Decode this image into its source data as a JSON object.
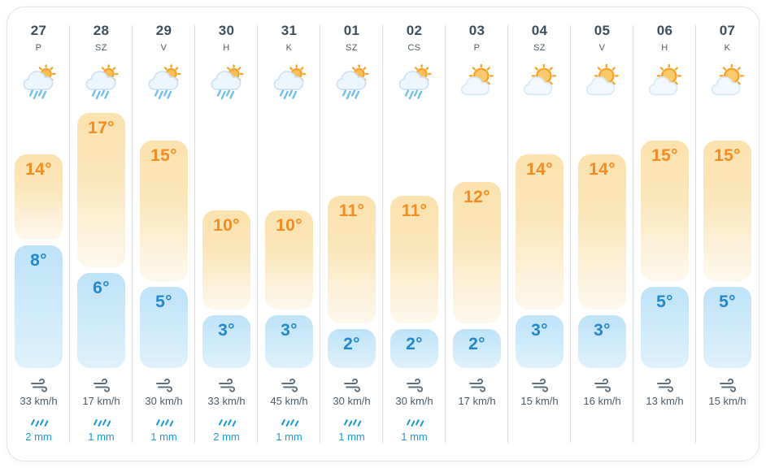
{
  "widget": "twelve-day-weather-forecast",
  "units": {
    "temperature": "°",
    "wind": "km/h",
    "precipitation": "mm"
  },
  "colors": {
    "high_bar": "#fbe2ae",
    "high_text": "#f68b1f",
    "low_bar": "#bfe2f7",
    "low_text": "#2287cb",
    "day_text": "#3d4e5c",
    "wind_text": "#4b5a67",
    "precip_accent": "#199ad6",
    "divider": "#d9dee2"
  },
  "days": [
    {
      "date": "27",
      "day": "P",
      "icon": "rain-sun",
      "high": 14,
      "high_label": "14°",
      "low": 8,
      "low_label": "8°",
      "wind_kmh": 33,
      "wind_label": "33 km/h",
      "precip_mm": 2,
      "precip_label": "2 mm"
    },
    {
      "date": "28",
      "day": "SZ",
      "icon": "rain-sun",
      "high": 17,
      "high_label": "17°",
      "low": 6,
      "low_label": "6°",
      "wind_kmh": 17,
      "wind_label": "17 km/h",
      "precip_mm": 1,
      "precip_label": "1 mm"
    },
    {
      "date": "29",
      "day": "V",
      "icon": "rain-sun",
      "high": 15,
      "high_label": "15°",
      "low": 5,
      "low_label": "5°",
      "wind_kmh": 30,
      "wind_label": "30 km/h",
      "precip_mm": 1,
      "precip_label": "1 mm"
    },
    {
      "date": "30",
      "day": "H",
      "icon": "rain-sun",
      "high": 10,
      "high_label": "10°",
      "low": 3,
      "low_label": "3°",
      "wind_kmh": 33,
      "wind_label": "33 km/h",
      "precip_mm": 2,
      "precip_label": "2 mm"
    },
    {
      "date": "31",
      "day": "K",
      "icon": "rain-sun",
      "high": 10,
      "high_label": "10°",
      "low": 3,
      "low_label": "3°",
      "wind_kmh": 45,
      "wind_label": "45 km/h",
      "precip_mm": 1,
      "precip_label": "1 mm"
    },
    {
      "date": "01",
      "day": "SZ",
      "icon": "rain-sun",
      "high": 11,
      "high_label": "11°",
      "low": 2,
      "low_label": "2°",
      "wind_kmh": 30,
      "wind_label": "30 km/h",
      "precip_mm": 1,
      "precip_label": "1 mm"
    },
    {
      "date": "02",
      "day": "CS",
      "icon": "rain-sun",
      "high": 11,
      "high_label": "11°",
      "low": 2,
      "low_label": "2°",
      "wind_kmh": 30,
      "wind_label": "30 km/h",
      "precip_mm": 1,
      "precip_label": "1 mm"
    },
    {
      "date": "03",
      "day": "P",
      "icon": "sun-cloud",
      "high": 12,
      "high_label": "12°",
      "low": 2,
      "low_label": "2°",
      "wind_kmh": 17,
      "wind_label": "17 km/h",
      "precip_mm": null,
      "precip_label": null
    },
    {
      "date": "04",
      "day": "SZ",
      "icon": "sun-cloud",
      "high": 14,
      "high_label": "14°",
      "low": 3,
      "low_label": "3°",
      "wind_kmh": 15,
      "wind_label": "15 km/h",
      "precip_mm": null,
      "precip_label": null
    },
    {
      "date": "05",
      "day": "V",
      "icon": "sun-cloud",
      "high": 14,
      "high_label": "14°",
      "low": 3,
      "low_label": "3°",
      "wind_kmh": 16,
      "wind_label": "16 km/h",
      "precip_mm": null,
      "precip_label": null
    },
    {
      "date": "06",
      "day": "H",
      "icon": "sun-cloud",
      "high": 15,
      "high_label": "15°",
      "low": 5,
      "low_label": "5°",
      "wind_kmh": 13,
      "wind_label": "13 km/h",
      "precip_mm": null,
      "precip_label": null
    },
    {
      "date": "07",
      "day": "K",
      "icon": "sun-cloud",
      "high": 15,
      "high_label": "15°",
      "low": 5,
      "low_label": "5°",
      "wind_kmh": 15,
      "wind_label": "15 km/h",
      "precip_mm": null,
      "precip_label": null
    }
  ]
}
